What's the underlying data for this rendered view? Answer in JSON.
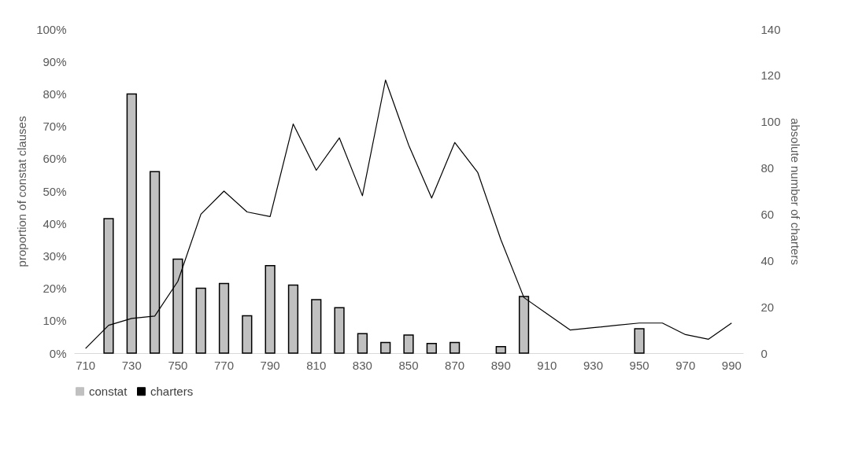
{
  "chart_data": {
    "type": "bar",
    "ylabel": "proportion of constat  clauses",
    "y2label": "absolute number of charters",
    "categories": [
      "710",
      null,
      "730",
      null,
      "750",
      null,
      "770",
      null,
      "790",
      null,
      "810",
      null,
      "830",
      null,
      "850",
      null,
      "870",
      null,
      "890",
      null,
      "910",
      null,
      "930",
      null,
      "950",
      null,
      "970",
      null,
      "990"
    ],
    "series": [
      {
        "name": "constat",
        "type": "bar",
        "color": "#c0c0c0",
        "values": [
          null,
          41.5,
          80,
          56,
          29,
          20,
          21.5,
          11.5,
          27,
          21,
          16.5,
          14,
          6,
          3.3,
          5.6,
          3,
          3.3,
          null,
          2,
          17.5,
          null,
          null,
          null,
          null,
          7.5,
          null,
          null,
          null,
          null
        ]
      },
      {
        "name": "charters",
        "type": "line",
        "axis": "y2",
        "color": "#000000",
        "values": [
          2,
          12,
          15,
          16,
          31,
          60,
          70,
          61,
          59,
          99,
          79,
          93,
          68,
          118,
          90,
          67,
          91,
          78,
          49,
          24,
          17,
          10,
          11,
          12,
          13,
          13,
          8,
          6,
          13
        ]
      }
    ],
    "ylim": [
      0,
      100
    ],
    "yticks": [
      {
        "value": 0,
        "label": "0%"
      },
      {
        "value": 10,
        "label": "10%"
      },
      {
        "value": 20,
        "label": "20%"
      },
      {
        "value": 30,
        "label": "30%"
      },
      {
        "value": 40,
        "label": "40%"
      },
      {
        "value": 50,
        "label": "50%"
      },
      {
        "value": 60,
        "label": "60%"
      },
      {
        "value": 70,
        "label": "70%"
      },
      {
        "value": 80,
        "label": "80%"
      },
      {
        "value": 90,
        "label": "90%"
      },
      {
        "value": 100,
        "label": "100%"
      }
    ],
    "y2lim": [
      0,
      140
    ],
    "y2ticks": [
      0,
      20,
      40,
      60,
      80,
      100,
      120,
      140
    ],
    "legend": "bottom",
    "grid": false,
    "marker": "none",
    "line_style": "solid"
  }
}
